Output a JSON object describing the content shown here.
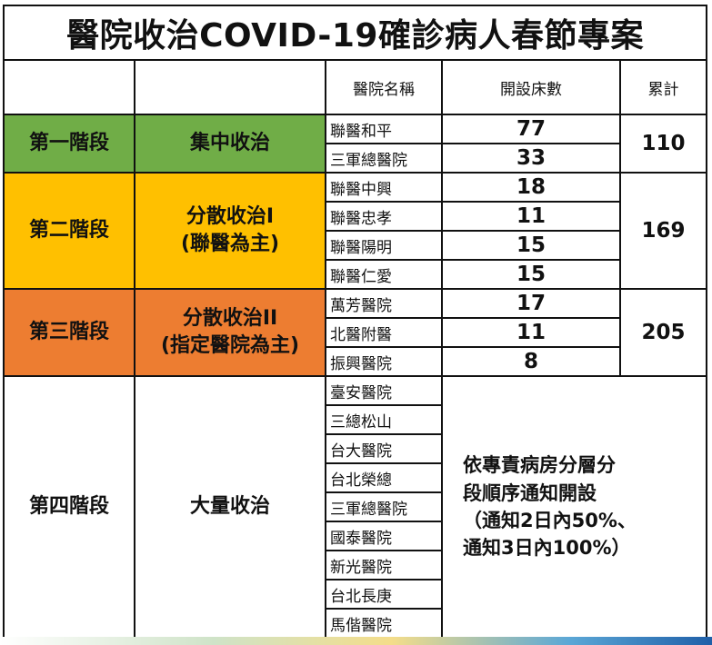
{
  "title": "醫院收治COVID-19確診病人春節專案",
  "headers": {
    "hospital_name": "醫院名稱",
    "beds": "開設床數",
    "total": "累計"
  },
  "stages": [
    {
      "stage": "第一階段",
      "mode": [
        "集中收治"
      ],
      "color": "#70ad47",
      "hospitals": [
        {
          "name": "聯醫和平",
          "beds": "77"
        },
        {
          "name": "三軍總醫院",
          "beds": "33"
        }
      ],
      "total": "110"
    },
    {
      "stage": "第二階段",
      "mode": [
        "分散收治I",
        "(聯醫為主)"
      ],
      "color": "#ffc000",
      "hospitals": [
        {
          "name": "聯醫中興",
          "beds": "18"
        },
        {
          "name": "聯醫忠孝",
          "beds": "11"
        },
        {
          "name": "聯醫陽明",
          "beds": "15"
        },
        {
          "name": "聯醫仁愛",
          "beds": "15"
        }
      ],
      "total": "169"
    },
    {
      "stage": "第三階段",
      "mode": [
        "分散收治II",
        "(指定醫院為主)"
      ],
      "color": "#ed7d31",
      "hospitals": [
        {
          "name": "萬芳醫院",
          "beds": "17"
        },
        {
          "name": "北醫附醫",
          "beds": "11"
        },
        {
          "name": "振興醫院",
          "beds": "8"
        }
      ],
      "total": "205"
    },
    {
      "stage": "第四階段",
      "mode": [
        "大量收治"
      ],
      "color": "#ffffff",
      "hospitals": [
        {
          "name": "臺安醫院"
        },
        {
          "name": "三總松山"
        },
        {
          "name": "台大醫院"
        },
        {
          "name": "台北榮總"
        },
        {
          "name": "三軍總醫院"
        },
        {
          "name": "國泰醫院"
        },
        {
          "name": "新光醫院"
        },
        {
          "name": "台北長庚"
        },
        {
          "name": "馬偕醫院"
        }
      ],
      "note": [
        "依專責病房分層分",
        "段順序通知開設",
        "（通知2日內50%、",
        "通知3日內100%）"
      ]
    }
  ]
}
